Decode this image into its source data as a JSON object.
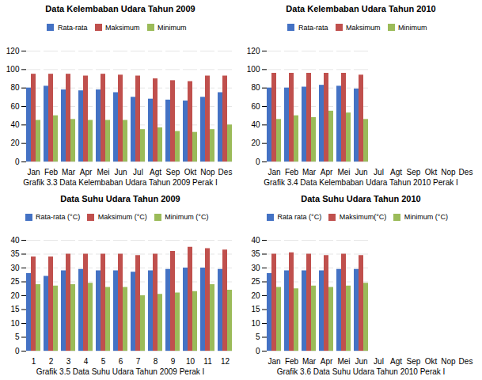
{
  "chart_data": [
    {
      "type": "bar",
      "title": "Data Kelembaban Udara Tahun 2009",
      "caption": "Grafik 3.3 Data Kelembaban Udara Tahun 2009 Perak I",
      "categories": [
        "Jan",
        "Feb",
        "Mar",
        "Apr",
        "Mei",
        "Jun",
        "Jul",
        "Agt",
        "Sep",
        "Okt",
        "Nop",
        "Des"
      ],
      "series": [
        {
          "name": "Rata-rata",
          "color": "#4472C4",
          "values": [
            80,
            82,
            78,
            77,
            78,
            75,
            70,
            68,
            67,
            66,
            70,
            75
          ]
        },
        {
          "name": "Maksimum",
          "color": "#C0504D",
          "values": [
            95,
            95,
            95,
            93,
            95,
            94,
            93,
            90,
            88,
            87,
            93,
            93
          ]
        },
        {
          "name": "Minimum",
          "color": "#9BBB59",
          "values": [
            45,
            50,
            46,
            45,
            45,
            45,
            35,
            37,
            33,
            32,
            35,
            40
          ]
        }
      ],
      "ylim": [
        0,
        120
      ],
      "yticks": [
        0,
        20,
        40,
        60,
        80,
        100,
        120
      ],
      "grid": true,
      "legend": "top"
    },
    {
      "type": "bar",
      "title": "Data Kelembaban Udara Tahun 2010",
      "caption": "Grafik 3.4 Data Kelembaban Udara Tahun 2010 Perak I",
      "categories": [
        "Jan",
        "Feb",
        "Mar",
        "Apr",
        "Mei",
        "Jun",
        "Jul",
        "Agt",
        "Sep",
        "Okt",
        "Nop",
        "Des"
      ],
      "series": [
        {
          "name": "Rata-rata",
          "color": "#4472C4",
          "values": [
            80,
            80,
            81,
            83,
            82,
            79,
            null,
            null,
            null,
            null,
            null,
            null
          ]
        },
        {
          "name": "Maksimum",
          "color": "#C0504D",
          "values": [
            96,
            96,
            96,
            96,
            96,
            94,
            null,
            null,
            null,
            null,
            null,
            null
          ]
        },
        {
          "name": "Minimum",
          "color": "#9BBB59",
          "values": [
            46,
            50,
            48,
            55,
            53,
            46,
            null,
            null,
            null,
            null,
            null,
            null
          ]
        }
      ],
      "ylim": [
        0,
        120
      ],
      "yticks": [
        0,
        20,
        40,
        60,
        80,
        100,
        120
      ],
      "grid": true,
      "legend": "top"
    },
    {
      "type": "bar",
      "title": "Data Suhu Udara Tahun 2009",
      "caption": "Grafik 3.5 Data Suhu Udara Tahun 2009 Perak I",
      "categories": [
        "1",
        "2",
        "3",
        "4",
        "5",
        "6",
        "7",
        "8",
        "9",
        "10",
        "11",
        "12"
      ],
      "series": [
        {
          "name": "Rata-rata (°C)",
          "color": "#4472C4",
          "values": [
            28,
            27,
            29,
            29.5,
            29,
            29,
            28.5,
            29,
            29.5,
            30,
            30,
            29.5
          ]
        },
        {
          "name": "Maksimum (°C)",
          "color": "#C0504D",
          "values": [
            34,
            34,
            35,
            35,
            35,
            35,
            34.5,
            35,
            36,
            37.5,
            37,
            36.5
          ]
        },
        {
          "name": "Minimum (°C)",
          "color": "#9BBB59",
          "values": [
            24,
            23.5,
            24,
            24.5,
            23,
            23,
            20,
            20.5,
            21,
            21.5,
            24,
            22
          ]
        }
      ],
      "ylim": [
        0,
        40
      ],
      "yticks": [
        0,
        5,
        10,
        15,
        20,
        25,
        30,
        35,
        40
      ],
      "grid": true,
      "legend": "top"
    },
    {
      "type": "bar",
      "title": "Data Suhu Udara Tahun 2010",
      "caption": "Grafik 3.6 Data Suhu Udara Tahun 2010 Perak I",
      "categories": [
        "Jan",
        "Feb",
        "Mar",
        "Apr",
        "Mei",
        "Jun",
        "Jul",
        "Agt",
        "Sep",
        "Okt",
        "Nop",
        "Des"
      ],
      "series": [
        {
          "name": "Rata rata (°C)",
          "color": "#4472C4",
          "values": [
            28,
            29,
            29,
            29,
            29.5,
            29.5,
            null,
            null,
            null,
            null,
            null,
            null
          ]
        },
        {
          "name": "Maksimum(°C)",
          "color": "#C0504D",
          "values": [
            35,
            35.5,
            35,
            34.5,
            35,
            34.5,
            null,
            null,
            null,
            null,
            null,
            null
          ]
        },
        {
          "name": "Minimum (°C)",
          "color": "#9BBB59",
          "values": [
            23,
            22.5,
            23.5,
            23,
            23.5,
            24.5,
            null,
            null,
            null,
            null,
            null,
            null
          ]
        }
      ],
      "ylim": [
        0,
        40
      ],
      "yticks": [
        0,
        5,
        10,
        15,
        20,
        25,
        30,
        35,
        40
      ],
      "grid": true,
      "legend": "top"
    }
  ]
}
